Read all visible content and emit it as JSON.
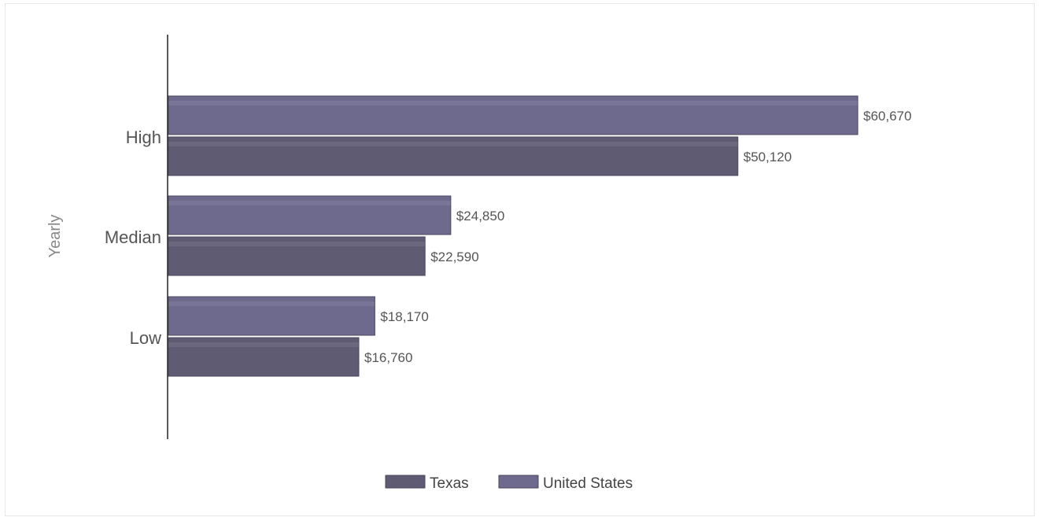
{
  "chart_data": {
    "type": "bar",
    "orientation": "horizontal",
    "ylabel": "Yearly",
    "categories": [
      "High",
      "Median",
      "Low"
    ],
    "series": [
      {
        "name": "United States",
        "values": [
          60670,
          24850,
          18170
        ],
        "color": "#6d6a8e"
      },
      {
        "name": "Texas",
        "values": [
          50120,
          22590,
          16760
        ],
        "color": "#5f5b72"
      }
    ],
    "value_labels": {
      "United States": [
        "$60,670",
        "$24,850",
        "$18,170"
      ],
      "Texas": [
        "$50,120",
        "$22,590",
        "$16,760"
      ]
    },
    "legend": {
      "position": "bottom",
      "entries": [
        "Texas",
        "United States"
      ]
    },
    "grid": false
  }
}
